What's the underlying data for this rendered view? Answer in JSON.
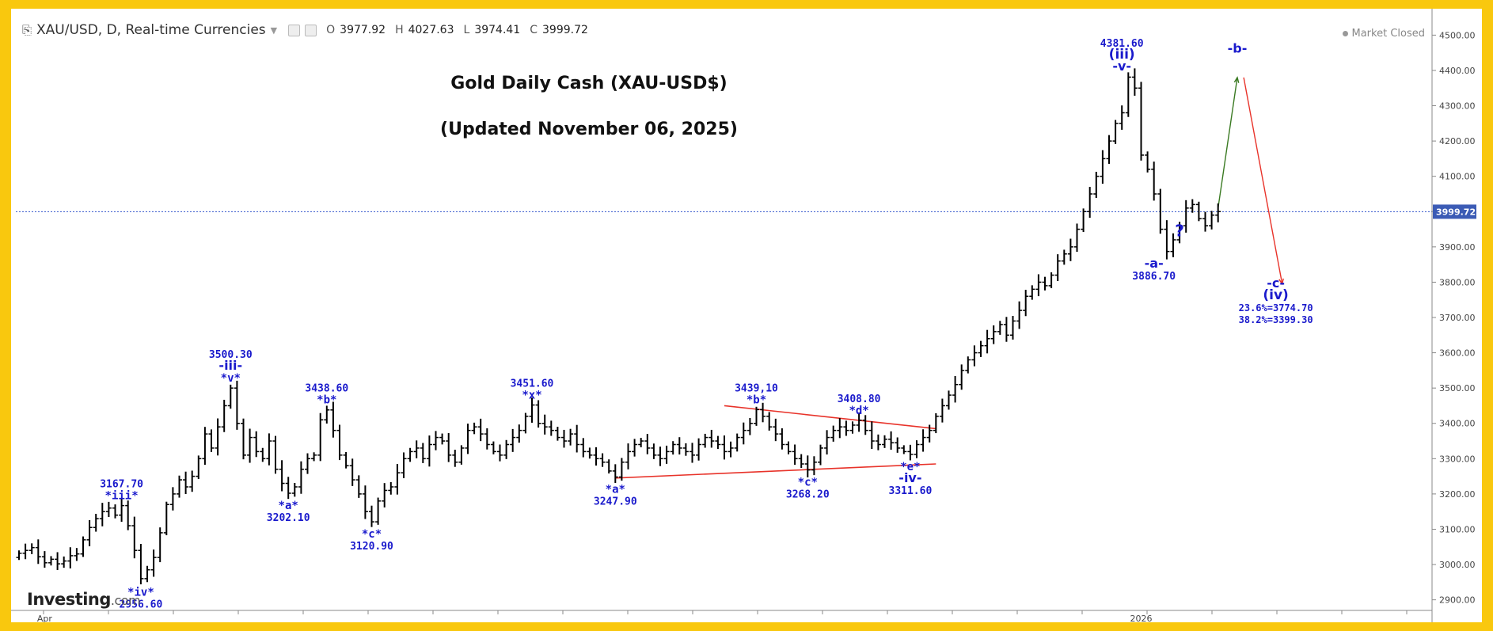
{
  "toolbar": {
    "symbol": "XAU/USD, D, Real-time Currencies",
    "ohlc": [
      {
        "label": "O",
        "value": "3977.92"
      },
      {
        "label": "H",
        "value": "4027.63"
      },
      {
        "label": "L",
        "value": "3974.41"
      },
      {
        "label": "C",
        "value": "3999.72"
      }
    ]
  },
  "market_status": "Market Closed",
  "logo": {
    "name": "Investing",
    "domain": ".com"
  },
  "chart_data": {
    "type": "ohlc",
    "title": "Gold Daily Cash (XAU-USD$)",
    "subtitle": "(Updated November 06, 2025)",
    "ylim": [
      2870,
      4530
    ],
    "y_ticks": [
      2900,
      3000,
      3100,
      3200,
      3300,
      3400,
      3500,
      3600,
      3700,
      3800,
      3900,
      4000,
      4100,
      4200,
      4300,
      4400,
      4500
    ],
    "y_tick_labels": [
      "2900.00",
      "3000.00",
      "3100.00",
      "3200.00",
      "3300.00",
      "3400.00",
      "3500.00",
      "3600.00",
      "3700.00",
      "3800.00",
      "3900.00",
      "4000.00",
      "4100.00",
      "4200.00",
      "4300.00",
      "4400.00",
      "4500.00"
    ],
    "x_labels": [
      {
        "bar": 4,
        "label": "Apr"
      },
      {
        "bar": 175,
        "label": "2026"
      }
    ],
    "last_price": 3999.72,
    "last_price_label": "3999.72",
    "colors": {
      "bars": "#000000",
      "labels": "#1a1acc",
      "price_line": "#3355cc",
      "triangle": "#e8332a",
      "up_arrow": "#3a7a22",
      "down_arrow": "#e8332a"
    },
    "closes": [
      3032,
      3040,
      3048,
      3022,
      3005,
      3015,
      3002,
      3010,
      3025,
      3030,
      3070,
      3105,
      3130,
      3150,
      3160,
      3140,
      3167,
      3110,
      3040,
      2960,
      2985,
      3020,
      3090,
      3170,
      3200,
      3240,
      3220,
      3250,
      3300,
      3370,
      3330,
      3390,
      3450,
      3500,
      3400,
      3310,
      3360,
      3320,
      3300,
      3350,
      3270,
      3230,
      3202,
      3220,
      3270,
      3300,
      3310,
      3410,
      3438,
      3380,
      3310,
      3280,
      3240,
      3200,
      3150,
      3121,
      3180,
      3210,
      3220,
      3260,
      3300,
      3320,
      3330,
      3300,
      3340,
      3360,
      3350,
      3310,
      3290,
      3330,
      3380,
      3390,
      3370,
      3340,
      3320,
      3310,
      3340,
      3360,
      3380,
      3420,
      3452,
      3400,
      3390,
      3380,
      3360,
      3350,
      3370,
      3340,
      3320,
      3310,
      3300,
      3290,
      3265,
      3248,
      3290,
      3320,
      3340,
      3350,
      3330,
      3310,
      3300,
      3320,
      3340,
      3330,
      3320,
      3310,
      3340,
      3360,
      3350,
      3340,
      3320,
      3330,
      3360,
      3380,
      3400,
      3439,
      3420,
      3390,
      3370,
      3340,
      3320,
      3300,
      3285,
      3268,
      3290,
      3330,
      3360,
      3380,
      3390,
      3380,
      3395,
      3409,
      3380,
      3350,
      3340,
      3355,
      3345,
      3330,
      3320,
      3312,
      3340,
      3360,
      3380,
      3420,
      3450,
      3480,
      3510,
      3550,
      3580,
      3600,
      3620,
      3640,
      3660,
      3680,
      3650,
      3690,
      3720,
      3760,
      3780,
      3800,
      3790,
      3820,
      3860,
      3880,
      3900,
      3950,
      4000,
      4050,
      4100,
      4150,
      4200,
      4250,
      4280,
      4381,
      4350,
      4160,
      4120,
      4050,
      3950,
      3887,
      3920,
      3960,
      4010,
      4020,
      3980,
      3960,
      3990,
      4000
    ],
    "annotations": [
      {
        "bar": 16,
        "price": 3167.7,
        "pos": "above",
        "lines": [
          "3167.70",
          "*iii*"
        ]
      },
      {
        "bar": 19,
        "price": 2956.6,
        "pos": "below",
        "lines": [
          "*iv*",
          "2956.60"
        ]
      },
      {
        "bar": 33,
        "price": 3500.3,
        "pos": "above",
        "lines": [
          "3500.30",
          "-iii-",
          "*v*"
        ]
      },
      {
        "bar": 42,
        "price": 3202.1,
        "pos": "below",
        "lines": [
          "*a*",
          "3202.10"
        ]
      },
      {
        "bar": 48,
        "price": 3438.6,
        "pos": "above",
        "lines": [
          "3438.60",
          "*b*"
        ]
      },
      {
        "bar": 55,
        "price": 3120.9,
        "pos": "below",
        "lines": [
          "*c*",
          "3120.90"
        ]
      },
      {
        "bar": 80,
        "price": 3451.6,
        "pos": "above",
        "lines": [
          "3451.60",
          "*x*"
        ]
      },
      {
        "bar": 93,
        "price": 3247.9,
        "pos": "below",
        "lines": [
          "*a*",
          "3247.90"
        ]
      },
      {
        "bar": 115,
        "price": 3439.1,
        "pos": "above",
        "lines": [
          "3439,10",
          "*b*"
        ]
      },
      {
        "bar": 123,
        "price": 3268.2,
        "pos": "below",
        "lines": [
          "*c*",
          "3268.20"
        ]
      },
      {
        "bar": 131,
        "price": 3408.8,
        "pos": "above",
        "lines": [
          "3408.80",
          "*d*"
        ]
      },
      {
        "bar": 139,
        "price": 3311.6,
        "pos": "below",
        "lines": [
          "*e*",
          "-iv-",
          "3311.60"
        ]
      },
      {
        "bar": 172,
        "price": 4381.6,
        "pos": "above",
        "lines": [
          "4381.60",
          "(iii)",
          "-v-"
        ]
      },
      {
        "bar": 177,
        "price": 3886.7,
        "pos": "below",
        "lines": [
          "-a-",
          "3886.70"
        ]
      },
      {
        "bar": 181,
        "price": 3930,
        "pos": "free",
        "lines": [
          "?"
        ]
      },
      {
        "bar": 190,
        "price": 4450,
        "pos": "free",
        "lines": [
          "-b-"
        ]
      },
      {
        "bar": 196,
        "price": 3785,
        "pos": "free",
        "lines": [
          "-c-",
          "(iv)",
          "23.6%=3774.70",
          "38.2%=3399.30"
        ]
      }
    ],
    "triangle_lines": [
      {
        "from": [
          93,
          3245
        ],
        "to": [
          143,
          3285
        ]
      },
      {
        "from": [
          110,
          3450
        ],
        "to": [
          143,
          3385
        ]
      }
    ],
    "arrows": [
      {
        "from": [
          187,
          4010
        ],
        "to": [
          190,
          4380
        ],
        "color": "up_arrow"
      },
      {
        "from": [
          191,
          4380
        ],
        "to": [
          197,
          3795
        ],
        "color": "down_arrow"
      }
    ]
  }
}
